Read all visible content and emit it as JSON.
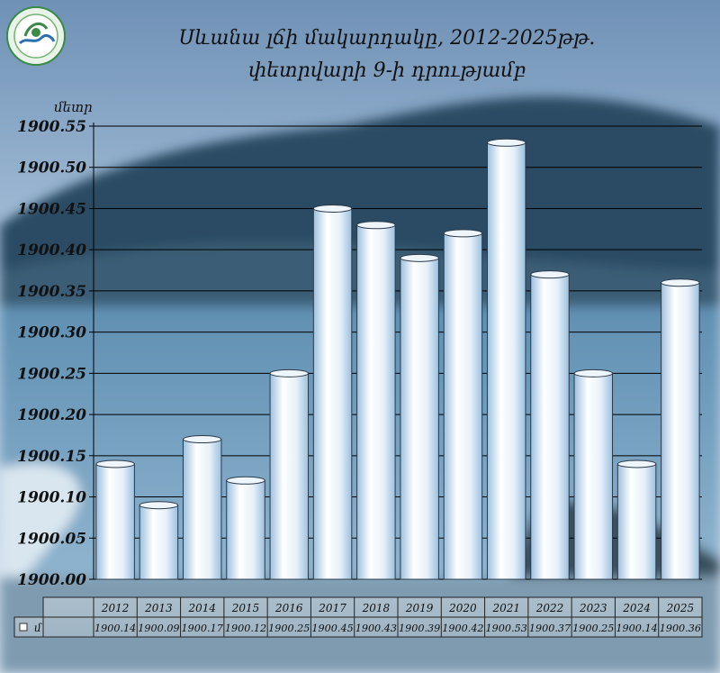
{
  "colors": {
    "sky_top": "#7f9fc2",
    "mountain": "#1f3f55",
    "lake": "#6d99b9",
    "bar_light": "#ffffff",
    "bar_dark": "#9cc0df"
  },
  "logo_icon": "emblem-icon",
  "chart_data": {
    "type": "bar",
    "title": "Սևանա լճի մակարդակը, 2012-2025թթ.",
    "subtitle": "փետրվարի 9-ի դրությամբ",
    "ylabel": "մետր",
    "xlabel": "",
    "ylim": [
      1900.0,
      1900.55
    ],
    "yticks": [
      "1900.00",
      "1900.05",
      "1900.10",
      "1900.15",
      "1900.20",
      "1900.25",
      "1900.30",
      "1900.35",
      "1900.40",
      "1900.45",
      "1900.50",
      "1900.55"
    ],
    "categories": [
      "2012",
      "2013",
      "2014",
      "2015",
      "2016",
      "2017",
      "2018",
      "2019",
      "2020",
      "2021",
      "2022",
      "2023",
      "2024",
      "2025"
    ],
    "series": [
      {
        "name": "մ",
        "values": [
          1900.14,
          1900.09,
          1900.17,
          1900.12,
          1900.25,
          1900.45,
          1900.43,
          1900.39,
          1900.42,
          1900.53,
          1900.37,
          1900.25,
          1900.14,
          1900.36
        ]
      }
    ],
    "table_labels": [
      "1900.14",
      "1900.09",
      "1900.17",
      "1900.12",
      "1900.25",
      "1900.45",
      "1900.43",
      "1900.39",
      "1900.42",
      "1900.53",
      "1900.37",
      "1900.25",
      "1900.14",
      "1900.36"
    ],
    "grid": true,
    "legend": "data-table"
  }
}
